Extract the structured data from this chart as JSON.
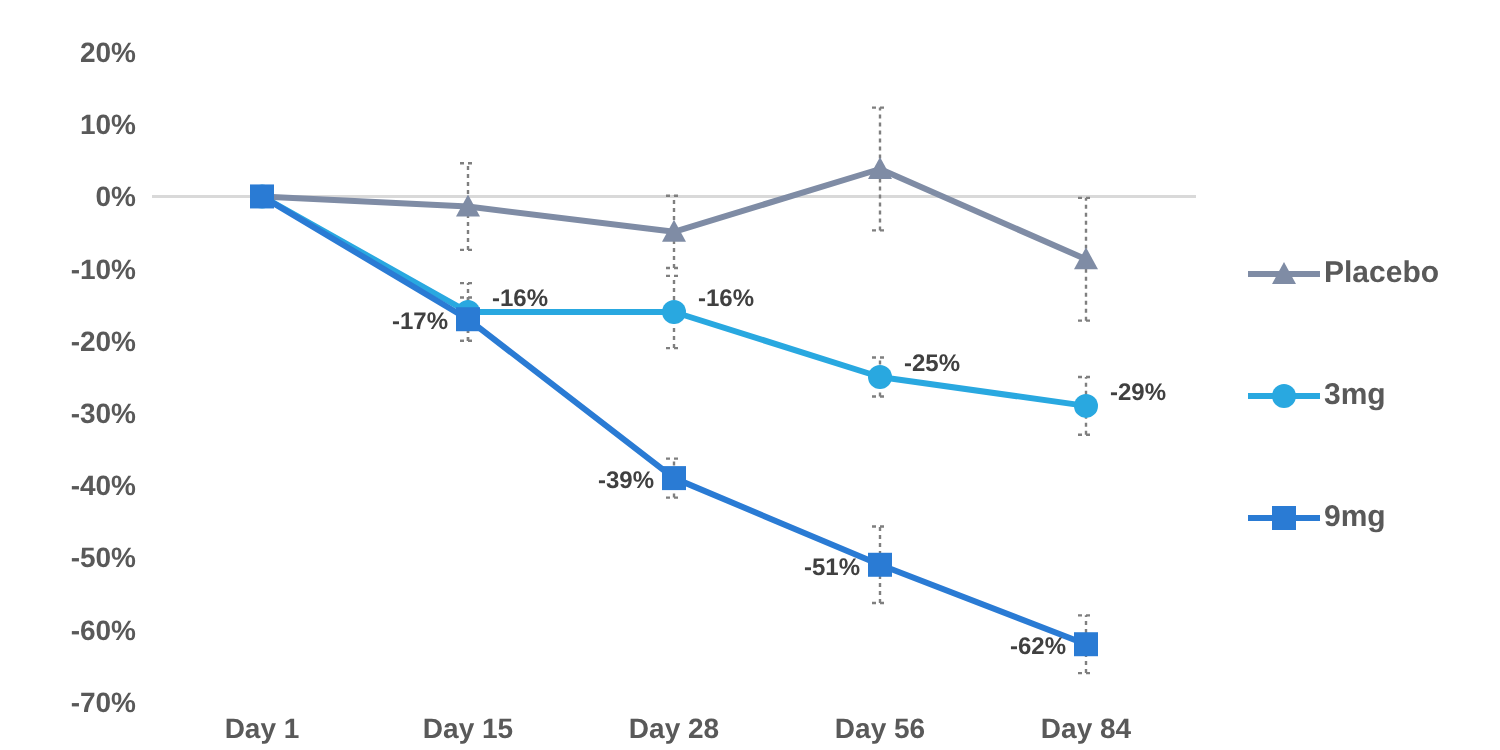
{
  "chart_data": {
    "type": "line",
    "categories": [
      "Day 1",
      "Day 15",
      "Day 28",
      "Day 56",
      "Day 84"
    ],
    "series": [
      {
        "name": "Placebo",
        "color": "#7f8ca5",
        "marker": "triangle",
        "values": [
          0,
          -1.4,
          -4.9,
          3.8,
          -8.7
        ],
        "errors": [
          null,
          6,
          5,
          8.5,
          8.5
        ]
      },
      {
        "name": "3mg",
        "color": "#29a8e0",
        "marker": "circle",
        "values": [
          0,
          -16,
          -16,
          -25,
          -29
        ],
        "errors": [
          null,
          4,
          5,
          2.7,
          4
        ],
        "value_labels": [
          null,
          "-16%",
          "-16%",
          "-25%",
          "-29%"
        ]
      },
      {
        "name": "9mg",
        "color": "#2a7bd4",
        "marker": "square",
        "values": [
          0,
          -17,
          -39,
          -51,
          -62
        ],
        "errors": [
          null,
          3,
          2.7,
          5.3,
          4
        ],
        "value_labels": [
          null,
          "-17%",
          "-39%",
          "-51%",
          "-62%"
        ]
      }
    ],
    "ylim": [
      -70,
      20
    ],
    "yticks": [
      {
        "value": 20,
        "label": "20%"
      },
      {
        "value": 10,
        "label": "10%"
      },
      {
        "value": 0,
        "label": "0%"
      },
      {
        "value": -10,
        "label": "-10%"
      },
      {
        "value": -20,
        "label": "-20%"
      },
      {
        "value": -30,
        "label": "-30%"
      },
      {
        "value": -40,
        "label": "-40%"
      },
      {
        "value": -50,
        "label": "-50%"
      },
      {
        "value": -60,
        "label": "-60%"
      },
      {
        "value": -70,
        "label": "-70%"
      }
    ],
    "ref_lines": [
      {
        "axis": "y",
        "value": 0,
        "color": "#d9d9d9"
      }
    ],
    "grid": false,
    "legend": "right",
    "line_style": "solid"
  }
}
